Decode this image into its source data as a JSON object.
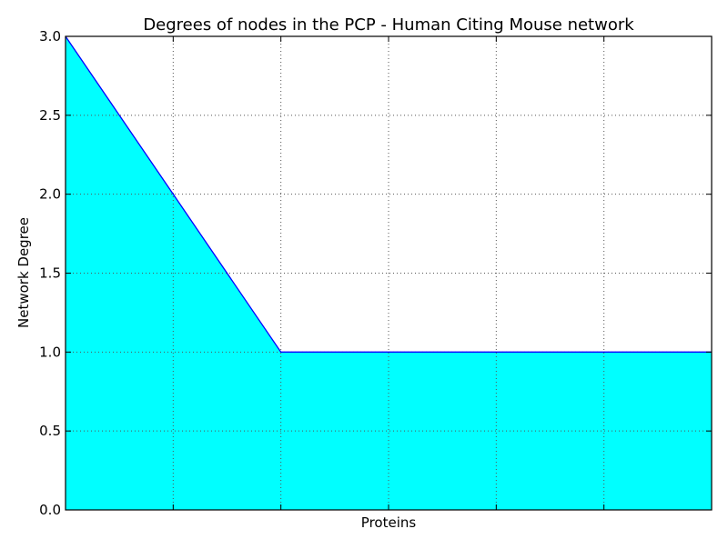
{
  "chart_data": {
    "type": "area",
    "title": "Degrees of nodes in the PCP - Human Citing Mouse network",
    "xlabel": "Proteins",
    "ylabel": "Network Degree",
    "x": [
      0,
      1,
      2,
      3,
      4,
      5,
      6
    ],
    "series": [
      {
        "values": [
          3,
          2,
          1,
          1,
          1,
          1,
          1
        ]
      }
    ],
    "xlim": [
      0,
      6
    ],
    "ylim": [
      0,
      3
    ],
    "yticks": [
      0.0,
      0.5,
      1.0,
      1.5,
      2.0,
      2.5,
      3.0
    ],
    "ytick_labels": [
      "0.0",
      "0.5",
      "1.0",
      "1.5",
      "2.0",
      "2.5",
      "3.0"
    ],
    "x_gridlines": [
      1,
      2,
      3,
      4,
      5
    ],
    "grid": true,
    "colors": {
      "fill": "#00ffff",
      "line": "#0000ff",
      "grid": "#555555",
      "axes": "#000000"
    }
  }
}
